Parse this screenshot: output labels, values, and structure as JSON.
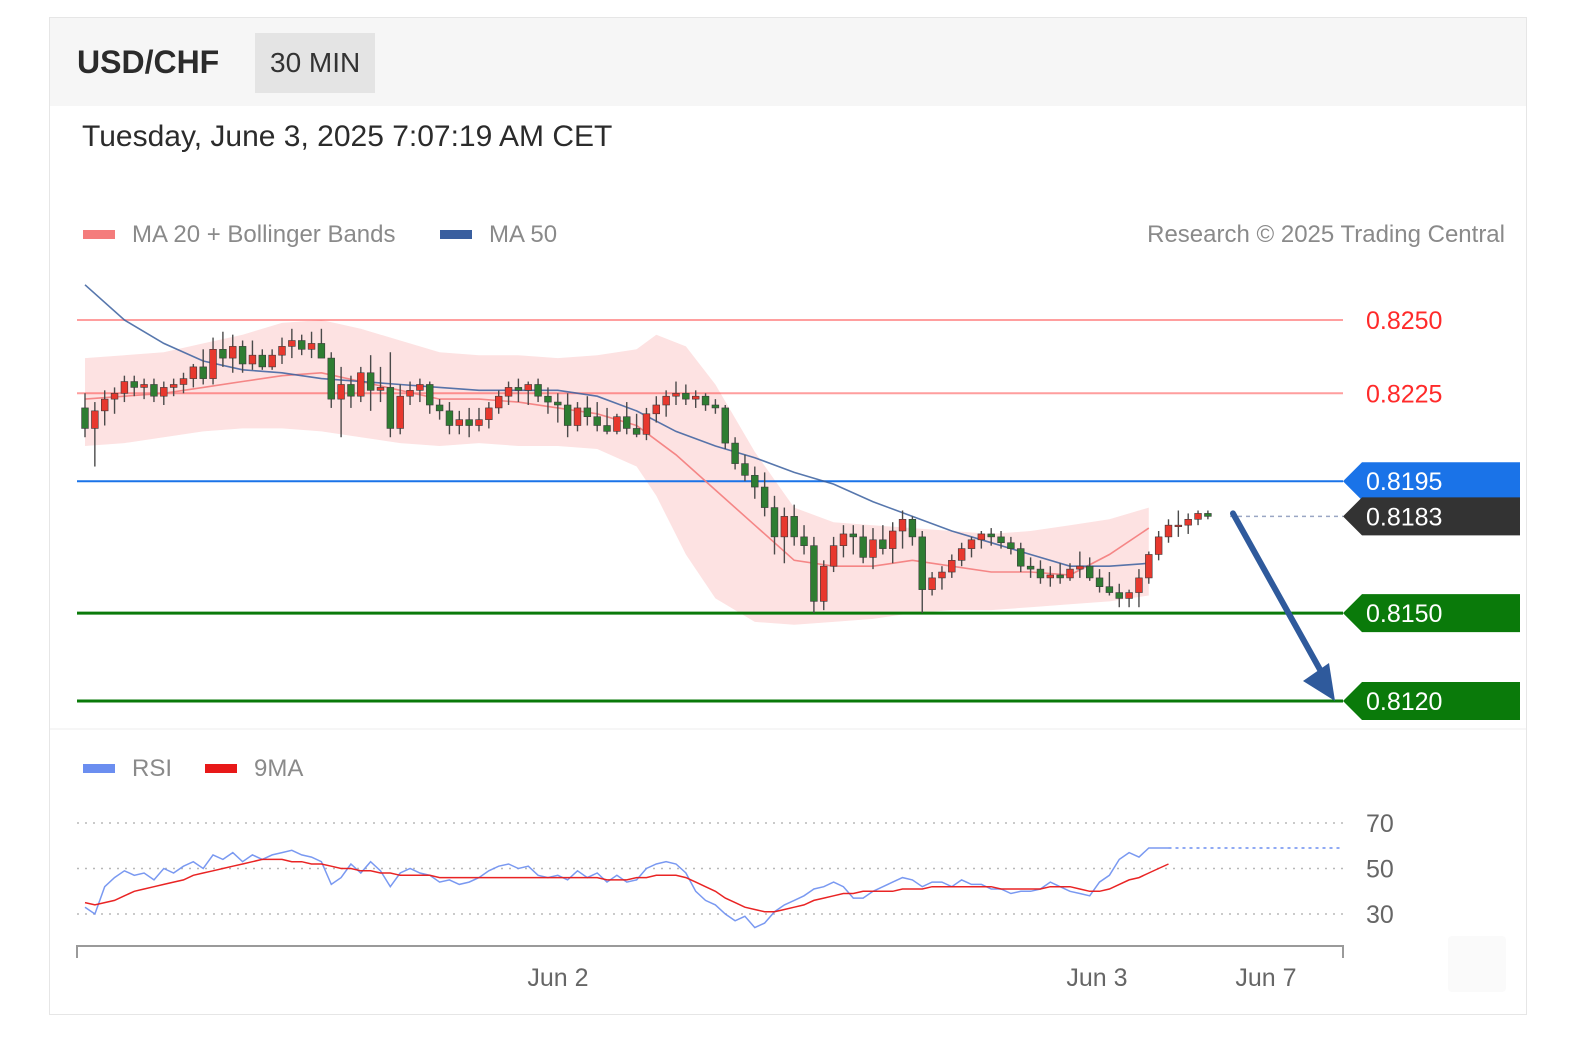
{
  "header": {
    "symbol": "USD/CHF",
    "timeframe": "30 MIN",
    "datetime": "Tuesday, June 3, 2025 7:07:19 AM CET"
  },
  "legend": {
    "ma20_label": "MA 20 + Bollinger Bands",
    "ma50_label": "MA 50",
    "copyright": "Research © 2025 Trading Central",
    "rsi_label": "RSI",
    "rsi_ma_label": "9MA"
  },
  "colors": {
    "ma20": "#f47c7c",
    "ma20_band": "#fde2e2",
    "ma50": "#3a5f9f",
    "up": "#e8382e",
    "down": "#2e7d32",
    "resistance": "#ff2a2a",
    "pivot": "#1a73e8",
    "support": "#0a7a0a",
    "last": "#333333",
    "rsi": "#6b8ef0",
    "rsi_ma": "#e81818"
  },
  "chart_data": [
    {
      "type": "candlestick",
      "title": "USD/CHF",
      "subtitle": "30 MIN",
      "ylim": [
        0.8105,
        0.827
      ],
      "x_ticks": [
        "Jun 2",
        "Jun 3",
        "Jun 7"
      ],
      "levels": [
        {
          "role": "resistance",
          "value": 0.825,
          "label": "0.8250"
        },
        {
          "role": "resistance",
          "value": 0.8225,
          "label": "0.8225"
        },
        {
          "role": "pivot",
          "value": 0.8195,
          "label": "0.8195"
        },
        {
          "role": "last",
          "value": 0.8183,
          "label": "0.8183"
        },
        {
          "role": "support",
          "value": 0.815,
          "label": "0.8150"
        },
        {
          "role": "support",
          "value": 0.812,
          "label": "0.8120"
        }
      ],
      "forecast_arrow": {
        "from": 0.8184,
        "to": 0.812,
        "direction": "down"
      },
      "series": [
        {
          "name": "MA 20",
          "values": [
            0.8223,
            0.8224,
            0.8225,
            0.8227,
            0.8229,
            0.8231,
            0.8232,
            0.8229,
            0.8226,
            0.8223,
            0.8223,
            0.8222,
            0.822,
            0.8218,
            0.8214,
            0.8204,
            0.8192,
            0.818,
            0.8168,
            0.8166,
            0.8166,
            0.8168,
            0.8166,
            0.8164,
            0.8164,
            0.8163,
            0.817,
            0.8179
          ]
        },
        {
          "name": "MA 50",
          "values": [
            0.8262,
            0.825,
            0.8242,
            0.8236,
            0.8233,
            0.8232,
            0.823,
            0.8229,
            0.8228,
            0.8227,
            0.8226,
            0.8226,
            0.8226,
            0.8224,
            0.8219,
            0.8212,
            0.8207,
            0.8203,
            0.8198,
            0.8194,
            0.8188,
            0.8183,
            0.8178,
            0.8174,
            0.817,
            0.8166,
            0.8166,
            0.8167
          ]
        }
      ],
      "ma_x_index": [
        0,
        4,
        8,
        12,
        16,
        20,
        24,
        28,
        32,
        36,
        40,
        44,
        48,
        52,
        56,
        60,
        64,
        68,
        72,
        76,
        80,
        84,
        88,
        92,
        96,
        100,
        104,
        108
      ],
      "bollinger": {
        "x_index": [
          0,
          4,
          8,
          12,
          16,
          20,
          24,
          28,
          32,
          36,
          40,
          44,
          48,
          52,
          56,
          58,
          61,
          64,
          68,
          72,
          76,
          80,
          84,
          88,
          92,
          96,
          100,
          104,
          108
        ],
        "upper": [
          0.8237,
          0.8238,
          0.8239,
          0.8242,
          0.8245,
          0.8249,
          0.825,
          0.8247,
          0.8243,
          0.8239,
          0.8238,
          0.8238,
          0.8237,
          0.8238,
          0.824,
          0.8245,
          0.8241,
          0.8228,
          0.8205,
          0.8186,
          0.8181,
          0.818,
          0.8179,
          0.8178,
          0.8177,
          0.8178,
          0.818,
          0.8182,
          0.8186
        ],
        "lower": [
          0.8207,
          0.8208,
          0.821,
          0.8212,
          0.8213,
          0.8213,
          0.8212,
          0.821,
          0.8208,
          0.8207,
          0.8208,
          0.8207,
          0.8207,
          0.8206,
          0.82,
          0.819,
          0.817,
          0.8155,
          0.8147,
          0.8146,
          0.8147,
          0.8148,
          0.815,
          0.8151,
          0.8151,
          0.8152,
          0.8153,
          0.8154,
          0.8156
        ]
      },
      "ohlc": [
        [
          0.822,
          0.8225,
          0.821,
          0.8213
        ],
        [
          0.8213,
          0.8222,
          0.82,
          0.8219
        ],
        [
          0.8219,
          0.8226,
          0.8214,
          0.8223
        ],
        [
          0.8223,
          0.8227,
          0.8218,
          0.8225
        ],
        [
          0.8225,
          0.8231,
          0.8222,
          0.8229
        ],
        [
          0.8229,
          0.8231,
          0.8224,
          0.8227
        ],
        [
          0.8227,
          0.823,
          0.8223,
          0.8228
        ],
        [
          0.8228,
          0.823,
          0.8222,
          0.8224
        ],
        [
          0.8224,
          0.8229,
          0.8221,
          0.8227
        ],
        [
          0.8227,
          0.823,
          0.8224,
          0.8228
        ],
        [
          0.8228,
          0.8232,
          0.8225,
          0.823
        ],
        [
          0.823,
          0.8235,
          0.8227,
          0.8234
        ],
        [
          0.8234,
          0.824,
          0.8228,
          0.823
        ],
        [
          0.823,
          0.8244,
          0.8228,
          0.824
        ],
        [
          0.824,
          0.8246,
          0.8234,
          0.8237
        ],
        [
          0.8237,
          0.8245,
          0.8232,
          0.8241
        ],
        [
          0.8241,
          0.8243,
          0.8232,
          0.8235
        ],
        [
          0.8235,
          0.8243,
          0.8233,
          0.8238
        ],
        [
          0.8238,
          0.824,
          0.8233,
          0.8234
        ],
        [
          0.8234,
          0.824,
          0.8233,
          0.8238
        ],
        [
          0.8238,
          0.8244,
          0.8235,
          0.8241
        ],
        [
          0.8241,
          0.8247,
          0.8237,
          0.8243
        ],
        [
          0.8243,
          0.8245,
          0.8238,
          0.824
        ],
        [
          0.824,
          0.8246,
          0.8237,
          0.8242
        ],
        [
          0.8242,
          0.8247,
          0.8238,
          0.8237
        ],
        [
          0.8237,
          0.8239,
          0.822,
          0.8223
        ],
        [
          0.8223,
          0.8234,
          0.821,
          0.8228
        ],
        [
          0.8228,
          0.8231,
          0.822,
          0.8224
        ],
        [
          0.8224,
          0.8234,
          0.8222,
          0.8232
        ],
        [
          0.8232,
          0.8238,
          0.8219,
          0.8226
        ],
        [
          0.8226,
          0.8234,
          0.8222,
          0.8227
        ],
        [
          0.8227,
          0.8239,
          0.821,
          0.8213
        ],
        [
          0.8213,
          0.8228,
          0.8211,
          0.8224
        ],
        [
          0.8224,
          0.8229,
          0.8221,
          0.8226
        ],
        [
          0.8226,
          0.823,
          0.8222,
          0.8228
        ],
        [
          0.8228,
          0.8229,
          0.8218,
          0.8221
        ],
        [
          0.8221,
          0.8223,
          0.8216,
          0.8219
        ],
        [
          0.8219,
          0.8222,
          0.8211,
          0.8214
        ],
        [
          0.8214,
          0.8219,
          0.8211,
          0.8216
        ],
        [
          0.8216,
          0.822,
          0.821,
          0.8214
        ],
        [
          0.8214,
          0.822,
          0.8212,
          0.8216
        ],
        [
          0.8216,
          0.8222,
          0.8213,
          0.822
        ],
        [
          0.822,
          0.8226,
          0.8218,
          0.8224
        ],
        [
          0.8224,
          0.8229,
          0.8221,
          0.8227
        ],
        [
          0.8227,
          0.823,
          0.8222,
          0.8226
        ],
        [
          0.8226,
          0.8229,
          0.8221,
          0.8228
        ],
        [
          0.8228,
          0.823,
          0.8222,
          0.8224
        ],
        [
          0.8224,
          0.8227,
          0.8218,
          0.8222
        ],
        [
          0.8222,
          0.8225,
          0.8215,
          0.8221
        ],
        [
          0.8221,
          0.8225,
          0.821,
          0.8214
        ],
        [
          0.8214,
          0.8222,
          0.8212,
          0.822
        ],
        [
          0.822,
          0.8224,
          0.8214,
          0.8217
        ],
        [
          0.8217,
          0.8222,
          0.8212,
          0.8214
        ],
        [
          0.8214,
          0.822,
          0.8211,
          0.8212
        ],
        [
          0.8212,
          0.8218,
          0.8211,
          0.8217
        ],
        [
          0.8217,
          0.8222,
          0.8211,
          0.8213
        ],
        [
          0.8213,
          0.8218,
          0.821,
          0.8211
        ],
        [
          0.8211,
          0.822,
          0.8209,
          0.8218
        ],
        [
          0.8218,
          0.8224,
          0.8215,
          0.8221
        ],
        [
          0.8221,
          0.8226,
          0.8217,
          0.8224
        ],
        [
          0.8224,
          0.8229,
          0.8221,
          0.8225
        ],
        [
          0.8225,
          0.8228,
          0.8221,
          0.8223
        ],
        [
          0.8223,
          0.8226,
          0.822,
          0.8224
        ],
        [
          0.8224,
          0.8225,
          0.8219,
          0.8221
        ],
        [
          0.8221,
          0.8223,
          0.8218,
          0.822
        ],
        [
          0.822,
          0.8221,
          0.8206,
          0.8208
        ],
        [
          0.8208,
          0.821,
          0.8199,
          0.8201
        ],
        [
          0.8201,
          0.8204,
          0.8195,
          0.8197
        ],
        [
          0.8197,
          0.82,
          0.8189,
          0.8193
        ],
        [
          0.8193,
          0.8198,
          0.8183,
          0.8186
        ],
        [
          0.8186,
          0.819,
          0.817,
          0.8176
        ],
        [
          0.8176,
          0.8186,
          0.8167,
          0.8183
        ],
        [
          0.8183,
          0.8187,
          0.8173,
          0.8176
        ],
        [
          0.8176,
          0.818,
          0.817,
          0.8173
        ],
        [
          0.8173,
          0.8176,
          0.815,
          0.8154
        ],
        [
          0.8154,
          0.8168,
          0.8151,
          0.8166
        ],
        [
          0.8166,
          0.8176,
          0.8164,
          0.8173
        ],
        [
          0.8173,
          0.818,
          0.8169,
          0.8177
        ],
        [
          0.8177,
          0.818,
          0.817,
          0.8176
        ],
        [
          0.8176,
          0.818,
          0.8167,
          0.8169
        ],
        [
          0.8169,
          0.8179,
          0.8165,
          0.8175
        ],
        [
          0.8175,
          0.818,
          0.817,
          0.8172
        ],
        [
          0.8172,
          0.8181,
          0.8167,
          0.8178
        ],
        [
          0.8178,
          0.8185,
          0.8172,
          0.8182
        ],
        [
          0.8182,
          0.8183,
          0.8173,
          0.8176
        ],
        [
          0.8176,
          0.8178,
          0.815,
          0.8158
        ],
        [
          0.8158,
          0.8164,
          0.8156,
          0.8162
        ],
        [
          0.8162,
          0.8166,
          0.8158,
          0.8164
        ],
        [
          0.8164,
          0.817,
          0.8162,
          0.8168
        ],
        [
          0.8168,
          0.8174,
          0.8166,
          0.8172
        ],
        [
          0.8172,
          0.8176,
          0.8169,
          0.8175
        ],
        [
          0.8175,
          0.8178,
          0.8172,
          0.8177
        ],
        [
          0.8177,
          0.8179,
          0.8173,
          0.8176
        ],
        [
          0.8176,
          0.8178,
          0.8172,
          0.8174
        ],
        [
          0.8174,
          0.8176,
          0.817,
          0.8172
        ],
        [
          0.8172,
          0.8174,
          0.8164,
          0.8166
        ],
        [
          0.8166,
          0.8169,
          0.8162,
          0.8165
        ],
        [
          0.8165,
          0.8168,
          0.816,
          0.8162
        ],
        [
          0.8162,
          0.8166,
          0.8159,
          0.8163
        ],
        [
          0.8163,
          0.8167,
          0.816,
          0.8162
        ],
        [
          0.8162,
          0.8167,
          0.8161,
          0.8165
        ],
        [
          0.8165,
          0.8171,
          0.8162,
          0.8166
        ],
        [
          0.8166,
          0.8169,
          0.8161,
          0.8162
        ],
        [
          0.8162,
          0.8165,
          0.8157,
          0.8159
        ],
        [
          0.8159,
          0.8164,
          0.8156,
          0.8157
        ],
        [
          0.8157,
          0.816,
          0.8152,
          0.8155
        ],
        [
          0.8155,
          0.8158,
          0.8152,
          0.8157
        ],
        [
          0.8157,
          0.8165,
          0.8152,
          0.8162
        ],
        [
          0.8162,
          0.8171,
          0.816,
          0.817
        ],
        [
          0.817,
          0.8178,
          0.8168,
          0.8176
        ],
        [
          0.8176,
          0.8182,
          0.8174,
          0.818
        ],
        [
          0.818,
          0.8185,
          0.8176,
          0.818
        ],
        [
          0.818,
          0.8184,
          0.8177,
          0.8182
        ],
        [
          0.8182,
          0.8185,
          0.818,
          0.8184
        ],
        [
          0.8184,
          0.8185,
          0.8182,
          0.8183
        ]
      ]
    },
    {
      "type": "line",
      "title": "RSI",
      "ylim": [
        20,
        80
      ],
      "ticks": [
        70,
        50,
        30
      ],
      "series": [
        {
          "name": "RSI",
          "values": [
            33,
            30,
            42,
            46,
            49,
            47,
            48,
            45,
            50,
            48,
            51,
            53,
            50,
            56,
            54,
            57,
            53,
            56,
            54,
            56,
            57,
            58,
            56,
            55,
            53,
            43,
            46,
            52,
            48,
            53,
            49,
            42,
            48,
            50,
            48,
            47,
            44,
            45,
            43,
            44,
            46,
            49,
            51,
            52,
            50,
            51,
            47,
            46,
            47,
            45,
            49,
            46,
            48,
            44,
            47,
            44,
            45,
            50,
            52,
            53,
            52,
            48,
            40,
            36,
            34,
            30,
            27,
            29,
            24,
            26,
            31,
            34,
            36,
            38,
            41,
            42,
            44,
            42,
            37,
            37,
            40,
            42,
            44,
            46,
            45,
            42,
            44,
            44,
            42,
            45,
            43,
            43,
            41,
            41,
            39,
            40,
            40,
            41,
            44,
            42,
            40,
            39,
            38,
            44,
            47,
            54,
            57,
            55,
            59,
            59,
            59
          ]
        },
        {
          "name": "9MA",
          "values": [
            35,
            34,
            35,
            36,
            38,
            40,
            41,
            42,
            43,
            44,
            45,
            47,
            48,
            49,
            50,
            51,
            52,
            53,
            54,
            54,
            54,
            53,
            53,
            52,
            52,
            51,
            50,
            50,
            49,
            49,
            48,
            48,
            47,
            47,
            47,
            47,
            46,
            46,
            46,
            46,
            46,
            46,
            46,
            46,
            46,
            46,
            46,
            46,
            46,
            46,
            46,
            46,
            46,
            45,
            45,
            45,
            46,
            46,
            47,
            47,
            47,
            46,
            44,
            42,
            40,
            37,
            35,
            33,
            32,
            31,
            31,
            32,
            33,
            34,
            36,
            37,
            38,
            39,
            39,
            40,
            40,
            40,
            40,
            41,
            41,
            41,
            42,
            42,
            42,
            42,
            42,
            42,
            42,
            41,
            41,
            41,
            41,
            41,
            42,
            42,
            42,
            41,
            40,
            40,
            41,
            43,
            45,
            46,
            48,
            50,
            52
          ]
        }
      ]
    }
  ]
}
